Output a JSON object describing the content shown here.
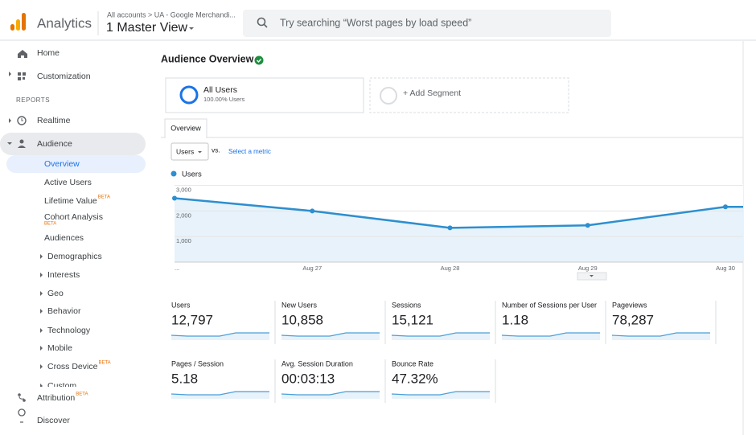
{
  "header": {
    "brand": "Analytics",
    "breadcrumb": "All accounts > UA - Google Merchandi...",
    "view": "1 Master View",
    "search_placeholder": "Try searching “Worst pages by load speed”"
  },
  "sidebar": {
    "items": [
      {
        "label": "Home"
      },
      {
        "label": "Customization"
      },
      {
        "label": "REPORTS"
      },
      {
        "label": "Realtime"
      },
      {
        "label": "Audience"
      },
      {
        "label": "Overview"
      },
      {
        "label": "Active Users"
      },
      {
        "label": "Lifetime Value",
        "badge": "BETA"
      },
      {
        "label": "Cohort Analysis",
        "badge": "BETA"
      },
      {
        "label": "Audiences"
      },
      {
        "label": "Demographics"
      },
      {
        "label": "Interests"
      },
      {
        "label": "Geo"
      },
      {
        "label": "Behavior"
      },
      {
        "label": "Technology"
      },
      {
        "label": "Mobile"
      },
      {
        "label": "Cross Device",
        "badge": "BETA"
      },
      {
        "label": "Custom"
      },
      {
        "label": "Attribution",
        "badge": "BETA"
      },
      {
        "label": "Discover"
      }
    ]
  },
  "main": {
    "title": "Audience Overview",
    "segments": {
      "active": {
        "name": "All Users",
        "detail": "100.00% Users"
      },
      "add": "+ Add Segment"
    },
    "tab": "Overview",
    "metric_select": "Users",
    "vs": "vs.",
    "select_metric": "Select a metric",
    "metrics": [
      {
        "label": "Users",
        "value": "12,797"
      },
      {
        "label": "New Users",
        "value": "10,858"
      },
      {
        "label": "Sessions",
        "value": "15,121"
      },
      {
        "label": "Number of Sessions per User",
        "value": "1.18"
      },
      {
        "label": "Pageviews",
        "value": "78,287"
      },
      {
        "label": "Pages / Session",
        "value": "5.18"
      },
      {
        "label": "Avg. Session Duration",
        "value": "00:03:13"
      },
      {
        "label": "Bounce Rate",
        "value": "47.32%"
      }
    ]
  },
  "chart_data": {
    "type": "line",
    "legend": "Users",
    "color": "#2d8fcf",
    "x": [
      "...",
      "Aug 27",
      "Aug 28",
      "Aug 29",
      "Aug 30"
    ],
    "values": [
      2500,
      2000,
      1340,
      1440,
      2160
    ],
    "ylim": [
      0,
      3050
    ],
    "yticks": [
      {
        "value": 1000,
        "label": "1,000"
      },
      {
        "value": 2000,
        "label": "2,000"
      },
      {
        "value": 3000,
        "label": "3,000"
      }
    ],
    "grid": true
  }
}
